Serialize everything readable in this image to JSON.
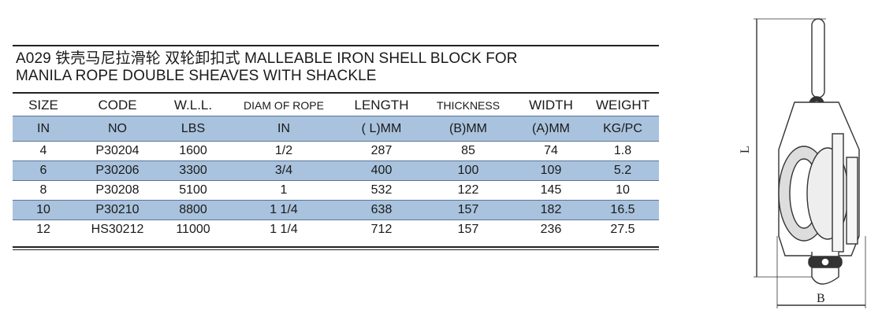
{
  "title": {
    "line1": "A029 铁壳马尼拉滑轮 双轮卸扣式 MALLEABLE IRON SHELL BLOCK FOR",
    "line2": "MANILA ROPE DOUBLE SHEAVES WITH SHACKLE"
  },
  "table": {
    "headers": [
      "SIZE",
      "CODE",
      "W.L.L.",
      "DIAM OF ROPE",
      "LENGTH",
      "THICKNESS",
      "WIDTH",
      "WEIGHT"
    ],
    "units": [
      "IN",
      "NO",
      "LBS",
      "IN",
      "( L)MM",
      "(B)MM",
      "(A)MM",
      "KG/PC"
    ],
    "rows": [
      [
        "4",
        "P30204",
        "1600",
        "1/2",
        "287",
        "85",
        "74",
        "1.8"
      ],
      [
        "6",
        "P30206",
        "3300",
        "3/4",
        "400",
        "100",
        "109",
        "5.2"
      ],
      [
        "8",
        "P30208",
        "5100",
        "1",
        "532",
        "122",
        "145",
        "10"
      ],
      [
        "10",
        "P30210",
        "8800",
        "1 1/4",
        "638",
        "157",
        "182",
        "16.5"
      ],
      [
        "12",
        "HS30212",
        "11000",
        "1 1/4",
        "712",
        "157",
        "236",
        "27.5"
      ]
    ]
  },
  "drawing": {
    "label_length": "L",
    "label_thickness": "B"
  },
  "colors": {
    "band": "#a9c3de",
    "rule": "#222222"
  }
}
